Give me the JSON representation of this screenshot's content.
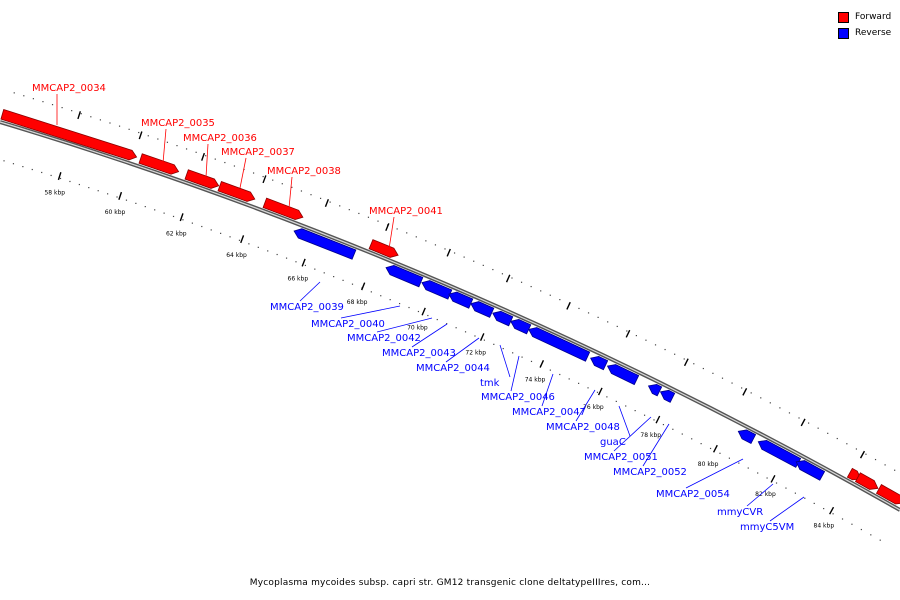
{
  "legend": {
    "forward": {
      "label": "Forward",
      "color": "#ff0000"
    },
    "reverse": {
      "label": "Reverse",
      "color": "#0000ff"
    }
  },
  "caption": "Mycoplasma mycoides subsp. capri str. GM12 transgenic clone deltatypeIIIres, com...",
  "ticks": [
    "58 kbp",
    "60 kbp",
    "62 kbp",
    "64 kbp",
    "66 kbp",
    "68 kbp",
    "70 kbp",
    "72 kbp",
    "74 kbp",
    "76 kbp",
    "78 kbp",
    "80 kbp",
    "82 kbp",
    "84 kbp"
  ],
  "genes": [
    {
      "name": "MMCAP2_0034",
      "strand": "forward"
    },
    {
      "name": "MMCAP2_0035",
      "strand": "forward"
    },
    {
      "name": "MMCAP2_0036",
      "strand": "forward"
    },
    {
      "name": "MMCAP2_0037",
      "strand": "forward"
    },
    {
      "name": "MMCAP2_0038",
      "strand": "forward"
    },
    {
      "name": "MMCAP2_0041",
      "strand": "forward"
    },
    {
      "name": "",
      "strand": "forward"
    },
    {
      "name": "",
      "strand": "forward"
    },
    {
      "name": "",
      "strand": "forward"
    },
    {
      "name": "MMCAP2_0039",
      "strand": "reverse"
    },
    {
      "name": "MMCAP2_0040",
      "strand": "reverse"
    },
    {
      "name": "MMCAP2_0042",
      "strand": "reverse"
    },
    {
      "name": "MMCAP2_0043",
      "strand": "reverse"
    },
    {
      "name": "MMCAP2_0044",
      "strand": "reverse"
    },
    {
      "name": "tmk",
      "strand": "reverse"
    },
    {
      "name": "MMCAP2_0046",
      "strand": "reverse"
    },
    {
      "name": "MMCAP2_0047",
      "strand": "reverse"
    },
    {
      "name": "MMCAP2_0048",
      "strand": "reverse"
    },
    {
      "name": "guaC",
      "strand": "reverse"
    },
    {
      "name": "MMCAP2_0051",
      "strand": "reverse"
    },
    {
      "name": "MMCAP2_0052",
      "strand": "reverse"
    },
    {
      "name": "MMCAP2_0054",
      "strand": "reverse"
    },
    {
      "name": "mmyCVR",
      "strand": "reverse"
    },
    {
      "name": "mmyC5VM",
      "strand": "reverse"
    }
  ]
}
